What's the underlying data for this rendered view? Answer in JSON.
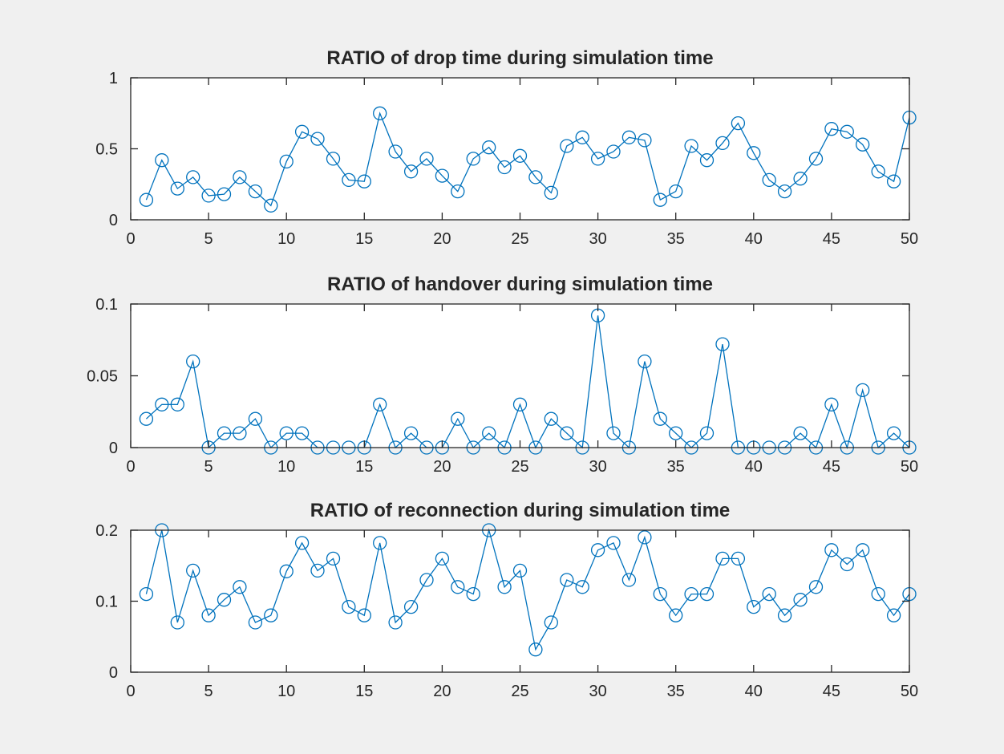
{
  "figure": {
    "background": "#f0f0f0",
    "axes_color": "#262626",
    "series_color": "#0072bd"
  },
  "chart_data": [
    {
      "type": "line",
      "title": "RATIO of drop time during simulation time",
      "xlabel": "",
      "ylabel": "",
      "xlim": [
        0,
        50
      ],
      "ylim": [
        0,
        1
      ],
      "xticks": [
        "0",
        "5",
        "10",
        "15",
        "20",
        "25",
        "30",
        "35",
        "40",
        "45",
        "50"
      ],
      "yticks": [
        "0",
        "0.5",
        "1"
      ],
      "marker": "circle",
      "grid": false,
      "x": [
        1,
        2,
        3,
        4,
        5,
        6,
        7,
        8,
        9,
        10,
        11,
        12,
        13,
        14,
        15,
        16,
        17,
        18,
        19,
        20,
        21,
        22,
        23,
        24,
        25,
        26,
        27,
        28,
        29,
        30,
        31,
        32,
        33,
        34,
        35,
        36,
        37,
        38,
        39,
        40,
        41,
        42,
        43,
        44,
        45,
        46,
        47,
        48,
        49,
        50
      ],
      "values": [
        0.14,
        0.42,
        0.22,
        0.3,
        0.17,
        0.18,
        0.3,
        0.2,
        0.1,
        0.41,
        0.62,
        0.57,
        0.43,
        0.28,
        0.27,
        0.75,
        0.48,
        0.34,
        0.43,
        0.31,
        0.2,
        0.43,
        0.51,
        0.37,
        0.45,
        0.3,
        0.19,
        0.52,
        0.58,
        0.43,
        0.48,
        0.58,
        0.56,
        0.14,
        0.2,
        0.52,
        0.42,
        0.54,
        0.68,
        0.47,
        0.28,
        0.2,
        0.29,
        0.43,
        0.64,
        0.62,
        0.53,
        0.34,
        0.27,
        0.72
      ]
    },
    {
      "type": "line",
      "title": "RATIO of handover during simulation time",
      "xlabel": "",
      "ylabel": "",
      "xlim": [
        0,
        50
      ],
      "ylim": [
        0,
        0.1
      ],
      "xticks": [
        "0",
        "5",
        "10",
        "15",
        "20",
        "25",
        "30",
        "35",
        "40",
        "45",
        "50"
      ],
      "yticks": [
        "0",
        "0.05",
        "0.1"
      ],
      "marker": "circle",
      "grid": false,
      "x": [
        1,
        2,
        3,
        4,
        5,
        6,
        7,
        8,
        9,
        10,
        11,
        12,
        13,
        14,
        15,
        16,
        17,
        18,
        19,
        20,
        21,
        22,
        23,
        24,
        25,
        26,
        27,
        28,
        29,
        30,
        31,
        32,
        33,
        34,
        35,
        36,
        37,
        38,
        39,
        40,
        41,
        42,
        43,
        44,
        45,
        46,
        47,
        48,
        49,
        50
      ],
      "values": [
        0.02,
        0.03,
        0.03,
        0.06,
        0,
        0.01,
        0.01,
        0.02,
        0,
        0.01,
        0.01,
        0,
        0,
        0,
        0,
        0.03,
        0,
        0.01,
        0,
        0,
        0.02,
        0,
        0.01,
        0,
        0.03,
        0,
        0.02,
        0.01,
        0,
        0.092,
        0.01,
        0,
        0.06,
        0.02,
        0.01,
        0,
        0.01,
        0.072,
        0,
        0,
        0,
        0,
        0.01,
        0,
        0.03,
        0,
        0.04,
        0,
        0.01,
        0
      ]
    },
    {
      "type": "line",
      "title": "RATIO of reconnection during simulation time",
      "xlabel": "",
      "ylabel": "",
      "xlim": [
        0,
        50
      ],
      "ylim": [
        0,
        0.2
      ],
      "xticks": [
        "0",
        "5",
        "10",
        "15",
        "20",
        "25",
        "30",
        "35",
        "40",
        "45",
        "50"
      ],
      "yticks": [
        "0",
        "0.1",
        "0.2"
      ],
      "marker": "circle",
      "grid": false,
      "x": [
        1,
        2,
        3,
        4,
        5,
        6,
        7,
        8,
        9,
        10,
        11,
        12,
        13,
        14,
        15,
        16,
        17,
        18,
        19,
        20,
        21,
        22,
        23,
        24,
        25,
        26,
        27,
        28,
        29,
        30,
        31,
        32,
        33,
        34,
        35,
        36,
        37,
        38,
        39,
        40,
        41,
        42,
        43,
        44,
        45,
        46,
        47,
        48,
        49,
        50
      ],
      "values": [
        0.11,
        0.2,
        0.07,
        0.143,
        0.08,
        0.102,
        0.12,
        0.07,
        0.08,
        0.142,
        0.182,
        0.143,
        0.16,
        0.092,
        0.08,
        0.182,
        0.07,
        0.092,
        0.13,
        0.16,
        0.12,
        0.11,
        0.2,
        0.12,
        0.143,
        0.032,
        0.07,
        0.13,
        0.12,
        0.172,
        0.182,
        0.13,
        0.19,
        0.11,
        0.08,
        0.11,
        0.11,
        0.16,
        0.16,
        0.092,
        0.11,
        0.08,
        0.102,
        0.12,
        0.172,
        0.152,
        0.172,
        0.11,
        0.08,
        0.11
      ]
    }
  ]
}
